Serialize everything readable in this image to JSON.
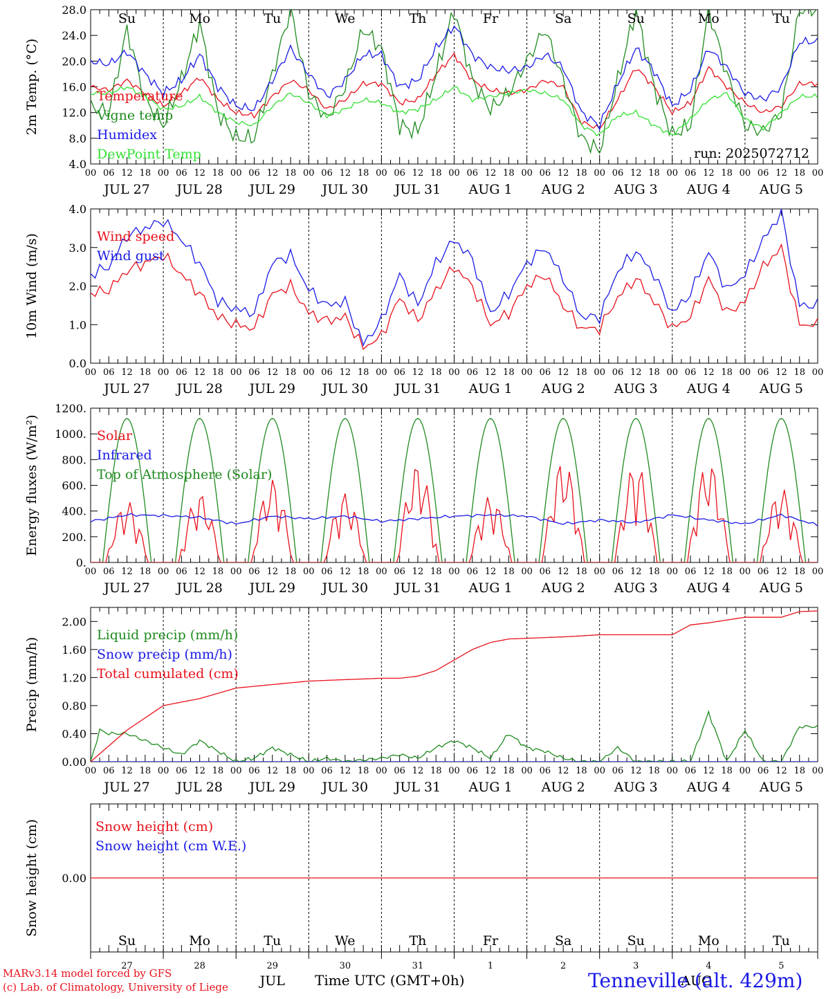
{
  "colors": {
    "red": "#e8111b",
    "green": "#1f8a1f",
    "blue": "#1a1ae6",
    "lightgreen": "#33e033",
    "black": "#000000"
  },
  "axis": {
    "hours": [
      "00",
      "06",
      "12",
      "18"
    ],
    "final_hour": "00",
    "dates": [
      "JUL 27",
      "JUL 28",
      "JUL 29",
      "JUL 30",
      "JUL 31",
      "AUG  1",
      "AUG  2",
      "AUG  3",
      "AUG  4",
      "AUG  5"
    ],
    "weekdays": [
      "Su",
      "Mo",
      "Tu",
      "We",
      "Th",
      "Fr",
      "Sa",
      "Su",
      "Mo",
      "Tu"
    ],
    "weekday_colors": [
      "#e8111b",
      "#000000",
      "#000000",
      "#000000",
      "#000000",
      "#000000",
      "#e8111b",
      "#e8111b",
      "#000000",
      "#000000"
    ],
    "day_numbers": [
      "27",
      "28",
      "29",
      "30",
      "31",
      "1",
      "2",
      "3",
      "4",
      "5"
    ],
    "month_labels": [
      "JUL",
      "AUG"
    ]
  },
  "run_label": "run: 2025072712",
  "footer": {
    "model": "MARv3.14 model forced by GFS",
    "lab": "(c) Lab. of Climatology, University of Liege",
    "xlabel": "Time UTC (GMT+0h)",
    "station": "Tenneville (alt. 429m)"
  },
  "chart_data": [
    {
      "type": "line",
      "ylabel": "2m Temp. (°C)",
      "ylim": [
        4.0,
        28.0
      ],
      "yticks": [
        "4.0",
        "8.0",
        "12.0",
        "16.0",
        "20.0",
        "24.0",
        "28.0"
      ],
      "x_unit": "hours since 2025-07-27 00 UTC",
      "series": [
        {
          "name": "Temperature",
          "color": "#e8111b",
          "x": [
            0,
            6,
            12,
            18,
            24,
            30,
            36,
            42,
            48,
            54,
            60,
            66,
            72,
            78,
            84,
            90,
            96,
            102,
            108,
            114,
            120,
            126,
            132,
            138,
            144,
            150,
            156,
            162,
            168,
            174,
            180,
            186,
            192,
            198,
            204,
            210,
            216,
            222,
            228,
            234
          ],
          "values": [
            16.0,
            15.5,
            17.0,
            15.0,
            13.0,
            15.0,
            17.5,
            14.0,
            12.0,
            11.5,
            14.5,
            17.0,
            15.5,
            12.5,
            14.0,
            16.5,
            16.5,
            13.5,
            14.0,
            18.0,
            21.0,
            17.0,
            15.5,
            15.0,
            15.5,
            17.0,
            16.0,
            10.5,
            9.5,
            14.0,
            19.0,
            16.0,
            12.0,
            13.5,
            19.0,
            16.0,
            13.5,
            12.0,
            13.0,
            16.5
          ]
        },
        {
          "name": "Vigne temp",
          "color": "#1f8a1f",
          "x": [
            0,
            6,
            12,
            18,
            24,
            30,
            36,
            42,
            48,
            54,
            60,
            66,
            72,
            78,
            84,
            90,
            96,
            102,
            108,
            114,
            120,
            126,
            132,
            138,
            144,
            150,
            156,
            162,
            168,
            174,
            180,
            186,
            192,
            198,
            204,
            210,
            216,
            222,
            228,
            234
          ],
          "values": [
            13.0,
            12.0,
            25.0,
            14.0,
            10.0,
            17.0,
            26.0,
            12.0,
            8.0,
            8.0,
            18.0,
            28.0,
            15.0,
            11.0,
            16.0,
            25.0,
            22.0,
            10.0,
            9.0,
            18.0,
            28.0,
            17.0,
            12.5,
            15.0,
            20.0,
            25.0,
            17.0,
            8.0,
            6.0,
            17.0,
            28.0,
            16.0,
            8.5,
            10.0,
            28.0,
            18.0,
            10.0,
            9.0,
            12.0,
            28.0
          ]
        },
        {
          "name": "Humidex",
          "color": "#1a1ae6",
          "x": [
            0,
            6,
            12,
            18,
            24,
            30,
            36,
            42,
            48,
            54,
            60,
            66,
            72,
            78,
            84,
            90,
            96,
            102,
            108,
            114,
            120,
            126,
            132,
            138,
            144,
            150,
            156,
            162,
            168,
            174,
            180,
            186,
            192,
            198,
            204,
            210,
            216,
            222,
            228,
            234
          ],
          "values": [
            20.0,
            19.5,
            21.5,
            18.0,
            15.0,
            17.0,
            21.0,
            16.0,
            13.0,
            12.5,
            17.0,
            22.0,
            18.0,
            14.5,
            17.0,
            21.0,
            21.0,
            16.0,
            17.0,
            22.0,
            25.5,
            21.0,
            19.0,
            18.5,
            19.0,
            21.0,
            19.0,
            12.0,
            10.0,
            16.5,
            22.0,
            18.5,
            13.0,
            15.5,
            22.0,
            19.0,
            15.0,
            14.0,
            16.0,
            23.0
          ]
        },
        {
          "name": "DewPoint Temp",
          "color": "#33e033",
          "x": [
            0,
            6,
            12,
            18,
            24,
            30,
            36,
            42,
            48,
            54,
            60,
            66,
            72,
            78,
            84,
            90,
            96,
            102,
            108,
            114,
            120,
            126,
            132,
            138,
            144,
            150,
            156,
            162,
            168,
            174,
            180,
            186,
            192,
            198,
            204,
            210,
            216,
            222,
            228,
            234
          ],
          "values": [
            15.0,
            15.0,
            16.0,
            14.5,
            12.5,
            13.0,
            14.5,
            12.0,
            10.5,
            10.0,
            13.0,
            15.0,
            13.5,
            11.5,
            12.5,
            14.0,
            13.5,
            12.0,
            12.5,
            14.0,
            16.0,
            14.0,
            14.5,
            15.0,
            15.5,
            15.0,
            14.0,
            10.0,
            8.5,
            11.5,
            12.0,
            10.0,
            8.5,
            11.0,
            14.0,
            15.0,
            11.0,
            9.5,
            12.0,
            14.5
          ]
        }
      ]
    },
    {
      "type": "line",
      "ylabel": "10m Wind (m/s)",
      "ylim": [
        0.0,
        4.0
      ],
      "yticks": [
        "0.0",
        "1.0",
        "2.0",
        "3.0",
        "4.0"
      ],
      "x_unit": "hours since 2025-07-27 00 UTC",
      "series": [
        {
          "name": "Wind speed",
          "color": "#e8111b",
          "x": [
            0,
            6,
            12,
            18,
            24,
            30,
            36,
            42,
            48,
            54,
            60,
            66,
            72,
            78,
            84,
            90,
            96,
            102,
            108,
            114,
            120,
            126,
            132,
            138,
            144,
            150,
            156,
            162,
            168,
            174,
            180,
            186,
            192,
            198,
            204,
            210,
            216,
            222,
            228,
            234
          ],
          "values": [
            1.8,
            1.9,
            2.4,
            2.6,
            2.8,
            2.3,
            1.8,
            1.2,
            1.0,
            0.9,
            1.8,
            2.0,
            1.3,
            1.1,
            1.2,
            0.4,
            0.7,
            1.7,
            1.1,
            1.9,
            2.5,
            2.0,
            1.0,
            1.3,
            2.0,
            2.3,
            1.5,
            0.9,
            0.9,
            1.7,
            2.2,
            1.6,
            0.9,
            1.2,
            2.2,
            1.3,
            1.6,
            2.5,
            3.0,
            1.0
          ]
        },
        {
          "name": "Wind gust",
          "color": "#1a1ae6",
          "x": [
            0,
            6,
            12,
            18,
            24,
            30,
            36,
            42,
            48,
            54,
            60,
            66,
            72,
            78,
            84,
            90,
            96,
            102,
            108,
            114,
            120,
            126,
            132,
            138,
            144,
            150,
            156,
            162,
            168,
            174,
            180,
            186,
            192,
            198,
            204,
            210,
            216,
            222,
            228,
            234
          ],
          "values": [
            2.3,
            2.5,
            3.3,
            3.5,
            3.7,
            3.2,
            2.6,
            1.6,
            1.4,
            1.3,
            2.6,
            2.8,
            1.9,
            1.5,
            1.6,
            0.5,
            1.1,
            2.3,
            1.5,
            2.6,
            3.2,
            2.7,
            1.3,
            1.8,
            2.6,
            3.0,
            2.2,
            1.2,
            1.2,
            2.4,
            2.9,
            2.3,
            1.3,
            1.8,
            2.9,
            1.9,
            2.3,
            3.2,
            3.9,
            1.5
          ]
        }
      ]
    },
    {
      "type": "line",
      "ylabel": "Energy fluxes (W/m²)",
      "ylim": [
        0,
        1200
      ],
      "yticks": [
        "0.",
        "200.",
        "400.",
        "600.",
        "800.",
        "1000.",
        "1200."
      ],
      "x_unit": "hours since 2025-07-27 00 UTC",
      "series": [
        {
          "name": "Solar",
          "color": "#e8111b",
          "peaks": [
            480,
            540,
            650,
            540,
            770,
            520,
            800,
            780,
            790,
            580
          ]
        },
        {
          "name": "Infrared",
          "color": "#1a1ae6",
          "x": [
            0,
            12,
            24,
            36,
            48,
            60,
            72,
            84,
            96,
            108,
            120,
            132,
            144,
            156,
            168,
            180,
            192,
            204,
            216,
            228,
            240
          ],
          "values": [
            320,
            370,
            365,
            350,
            300,
            360,
            340,
            360,
            320,
            340,
            360,
            370,
            360,
            300,
            330,
            310,
            370,
            330,
            300,
            370,
            290
          ]
        },
        {
          "name": "Top of Atmosphere (Solar)",
          "color": "#1f8a1f",
          "peak": 1120
        }
      ]
    },
    {
      "type": "line",
      "ylabel": "Precip (mm/h)",
      "ylim": [
        0.0,
        2.2
      ],
      "yticks": [
        "0.00",
        "0.40",
        "0.80",
        "1.20",
        "1.60",
        "2.00"
      ],
      "x_unit": "hours since 2025-07-27 00 UTC",
      "series": [
        {
          "name": "Liquid precip (mm/h)",
          "color": "#1f8a1f",
          "x": [
            0,
            3,
            6,
            12,
            18,
            24,
            30,
            36,
            42,
            48,
            54,
            60,
            66,
            72,
            78,
            84,
            96,
            102,
            108,
            114,
            120,
            126,
            132,
            138,
            144,
            150,
            156,
            162,
            168,
            174,
            180,
            192,
            198,
            204,
            210,
            216,
            222,
            228,
            234
          ],
          "values": [
            0.0,
            0.45,
            0.4,
            0.4,
            0.3,
            0.2,
            0.1,
            0.3,
            0.15,
            0.0,
            0.05,
            0.2,
            0.1,
            0.0,
            0.05,
            0.0,
            0.05,
            0.1,
            0.05,
            0.2,
            0.3,
            0.2,
            0.05,
            0.4,
            0.2,
            0.15,
            0.05,
            0.0,
            0.0,
            0.2,
            0.0,
            0.0,
            0.0,
            0.7,
            0.0,
            0.45,
            0.0,
            0.0,
            0.5
          ]
        },
        {
          "name": "Snow precip (mm/h)",
          "color": "#1a1ae6",
          "x": [
            0,
            240
          ],
          "values": [
            0.0,
            0.0
          ]
        },
        {
          "name": "Total cumulated (cm)",
          "color": "#e8111b",
          "x": [
            0,
            12,
            24,
            36,
            48,
            60,
            72,
            84,
            96,
            102,
            108,
            114,
            120,
            126,
            132,
            138,
            144,
            156,
            168,
            180,
            192,
            198,
            204,
            216,
            228,
            234,
            240
          ],
          "values": [
            0.0,
            0.45,
            0.8,
            0.9,
            1.05,
            1.1,
            1.15,
            1.17,
            1.19,
            1.19,
            1.22,
            1.3,
            1.45,
            1.6,
            1.7,
            1.75,
            1.76,
            1.78,
            1.81,
            1.81,
            1.81,
            1.95,
            1.98,
            2.06,
            2.06,
            2.14,
            2.15
          ]
        }
      ]
    },
    {
      "type": "line",
      "ylabel": "Snow height (cm)",
      "yticks": [
        "0.00"
      ],
      "x_unit": "hours since 2025-07-27 00 UTC",
      "series": [
        {
          "name": "Snow height (cm)",
          "color": "#e8111b",
          "x": [
            0,
            240
          ],
          "values": [
            0.0,
            0.0
          ]
        },
        {
          "name": "Snow height (cm W.E.)",
          "color": "#1a1ae6",
          "x": [
            0,
            240
          ],
          "values": [
            0.0,
            0.0
          ]
        }
      ]
    }
  ]
}
